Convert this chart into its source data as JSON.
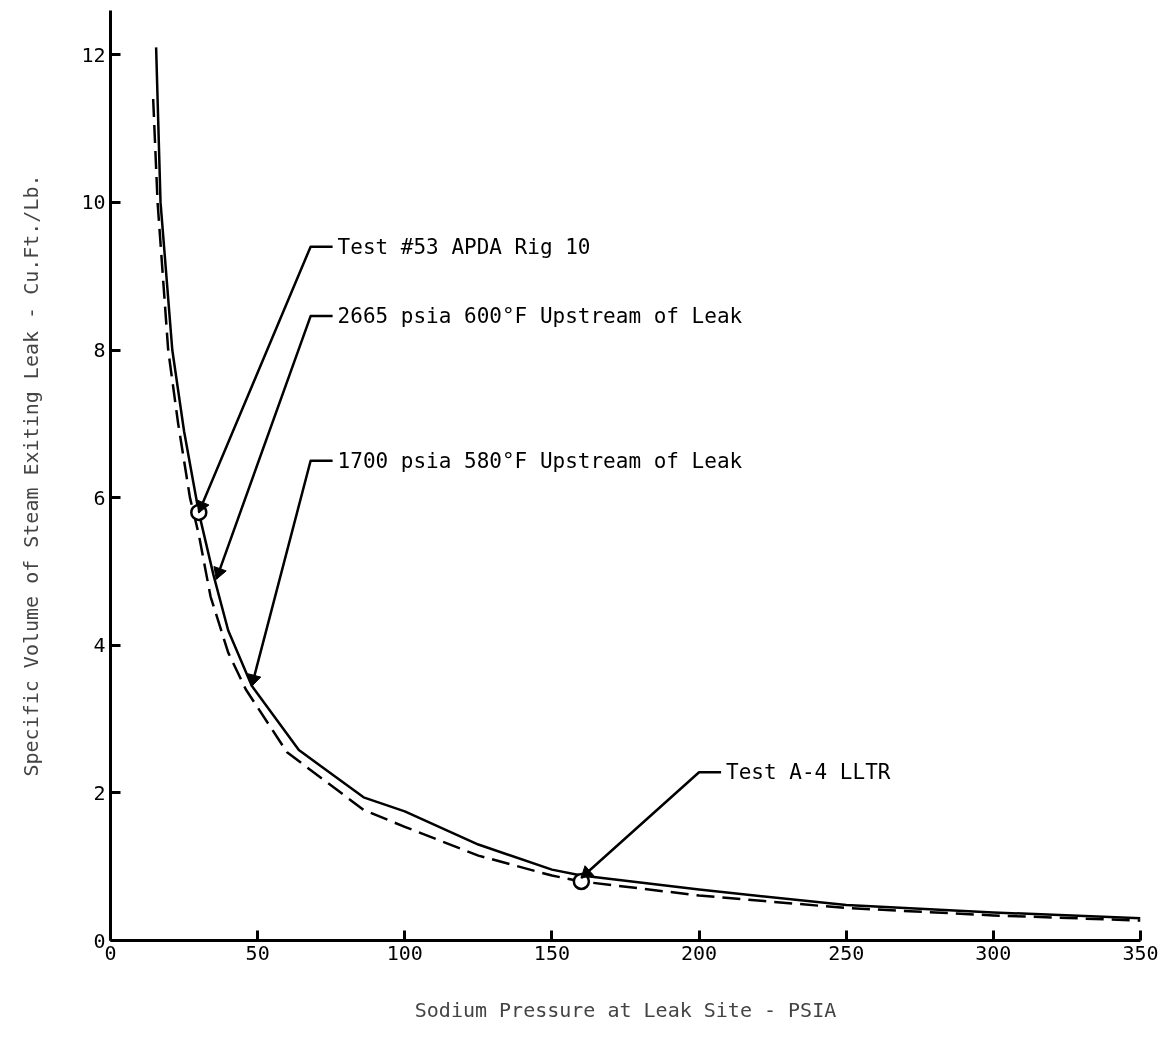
{
  "chart_data": {
    "type": "line",
    "xlabel": "Sodium Pressure at Leak Site - PSIA",
    "ylabel": "Specific Volume of Steam Exiting Leak - Cu.Ft./Lb.",
    "xlim": [
      0,
      350
    ],
    "xticks": [
      0,
      50,
      100,
      150,
      200,
      250,
      300,
      350
    ],
    "ylim": [
      0,
      12.6
    ],
    "yticks": [
      0,
      2,
      4,
      6,
      8,
      10,
      12
    ],
    "grid": false,
    "marker": "none",
    "series": [
      {
        "color": "#000000",
        "line_style": "solid",
        "x": [
          15.5,
          17,
          21,
          25,
          30,
          35,
          40,
          48,
          64,
          86,
          100,
          125,
          150,
          160,
          200,
          250,
          300,
          350
        ],
        "values": [
          12.1,
          10,
          8,
          6.9,
          5.8,
          4.95,
          4.2,
          3.45,
          2.58,
          1.94,
          1.75,
          1.3,
          0.96,
          0.88,
          0.69,
          0.48,
          0.38,
          0.3
        ]
      },
      {
        "color": "#000000",
        "line_style": "dashed",
        "x": [
          14.5,
          16,
          19.6,
          23,
          27,
          30,
          34,
          40,
          46,
          60,
          86,
          100,
          125,
          150,
          160,
          200,
          250,
          300,
          350
        ],
        "values": [
          11.4,
          10,
          8,
          7,
          6,
          5.5,
          4.66,
          3.9,
          3.4,
          2.55,
          1.77,
          1.54,
          1.15,
          0.88,
          0.8,
          0.61,
          0.44,
          0.34,
          0.27
        ]
      },
      {
        "type": "scatter",
        "marker": "circle",
        "color": "#000000",
        "x": [
          30,
          160
        ],
        "values": [
          5.8,
          0.8
        ]
      }
    ],
    "annotations": [
      {
        "text": "Test #53 APDA Rig 10",
        "x": 30,
        "y": 5.8
      },
      {
        "text": "2665 psia 600°F Upstream of Leak",
        "x": 36,
        "y": 4.9
      },
      {
        "text": "1700 psia 580°F Upstream of Leak",
        "x": 48,
        "y": 3.45
      },
      {
        "text": "Test A-4 LLTR",
        "x": 160,
        "y": 0.85
      }
    ]
  }
}
